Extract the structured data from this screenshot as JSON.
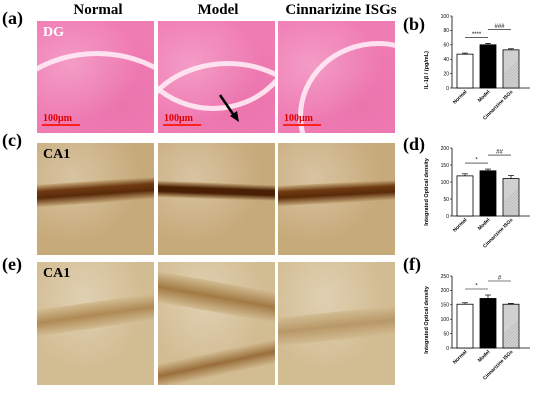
{
  "column_headers": [
    "Normal",
    "Model",
    "Cinnarizine ISGs"
  ],
  "panel_labels": {
    "a": "(a)",
    "b": "(b)",
    "c": "(c)",
    "d": "(d)",
    "e": "(e)",
    "f": "(f)"
  },
  "tissue_labels": {
    "a": "DG",
    "c": "CA1",
    "e": "CA1"
  },
  "scale_label": "100μm",
  "colors": {
    "he_stain": "#f07cb4",
    "ihc_stain": "#c7aa7a",
    "bar_normal": "#ffffff",
    "bar_model": "#000000",
    "bar_isg": "#d0d0d0"
  },
  "chart_data": [
    {
      "type": "bar",
      "panel": "(b)",
      "categories": [
        "Normal",
        "Model",
        "Cinnarizine ISGs"
      ],
      "values": [
        47,
        60,
        53
      ],
      "errors": [
        1.5,
        2,
        1.5
      ],
      "ylabel": "IL-1β / (pg/mL)",
      "ylim": [
        0,
        100
      ],
      "yticks": [
        "0",
        "20",
        "40",
        "60",
        "80",
        "100"
      ],
      "significance": [
        {
          "between": [
            "Normal",
            "Model"
          ],
          "label": "****"
        },
        {
          "between": [
            "Model",
            "Cinnarizine ISGs"
          ],
          "label": "###"
        }
      ]
    },
    {
      "type": "bar",
      "panel": "(d)",
      "categories": [
        "Normal",
        "Model",
        "Cinnarizine ISGs"
      ],
      "values": [
        118,
        133,
        110
      ],
      "errors": [
        6,
        5,
        9
      ],
      "ylabel": "Integrated Optical density",
      "ylim": [
        0,
        200
      ],
      "yticks": [
        "0",
        "50",
        "100",
        "150",
        "200"
      ],
      "significance": [
        {
          "between": [
            "Normal",
            "Model"
          ],
          "label": "*"
        },
        {
          "between": [
            "Model",
            "Cinnarizine ISGs"
          ],
          "label": "##"
        }
      ]
    },
    {
      "type": "bar",
      "panel": "(f)",
      "categories": [
        "Normal",
        "Model",
        "Cinnarizine ISGs"
      ],
      "values": [
        152,
        172,
        152
      ],
      "errors": [
        5,
        12,
        3
      ],
      "ylabel": "Integrated Optical density",
      "ylim": [
        0,
        250
      ],
      "yticks": [
        "0",
        "50",
        "100",
        "150",
        "200",
        "250"
      ],
      "significance": [
        {
          "between": [
            "Normal",
            "Model"
          ],
          "label": "*"
        },
        {
          "between": [
            "Model",
            "Cinnarizine ISGs"
          ],
          "label": "#"
        }
      ]
    }
  ]
}
